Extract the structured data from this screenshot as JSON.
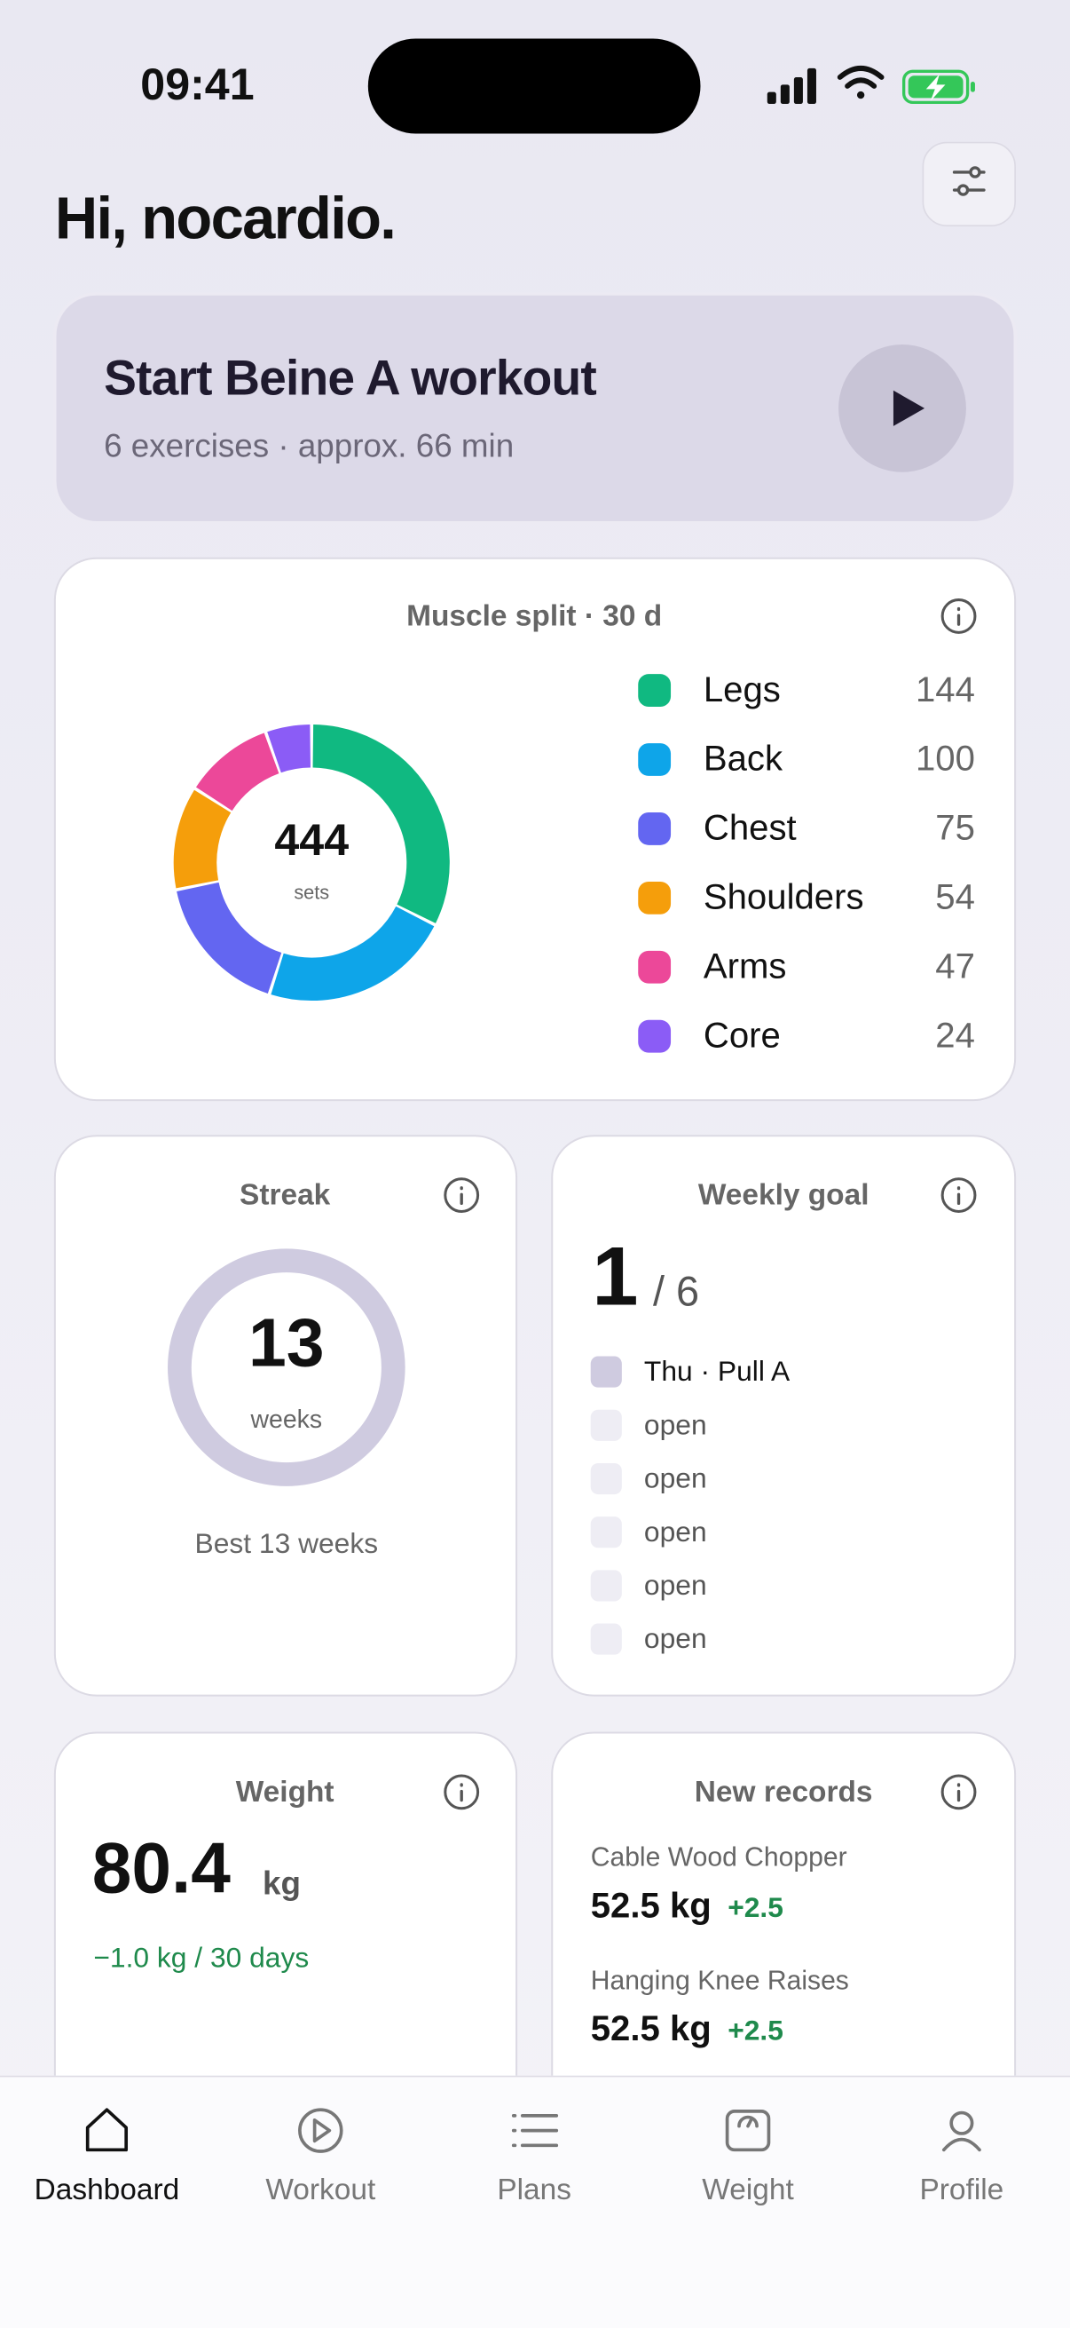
{
  "status_bar": {
    "time": "09:41"
  },
  "header": {
    "greeting": "Hi, nocardio."
  },
  "start_card": {
    "title": "Start Beine A workout",
    "subtitle": "6 exercises · approx. 66 min"
  },
  "muscle_split": {
    "title": "Muscle split · 30 d",
    "total": 444,
    "total_unit": "sets",
    "categories": [
      "Legs",
      "Back",
      "Chest",
      "Shoulders",
      "Arms",
      "Core"
    ],
    "values": [
      144,
      100,
      75,
      54,
      47,
      24
    ],
    "colors": [
      "#10b981",
      "#0ea5e9",
      "#6366f1",
      "#f59e0b",
      "#ec4899",
      "#8b5cf6"
    ]
  },
  "streak": {
    "title": "Streak",
    "value": 13,
    "unit": "weeks",
    "best": "Best 13 weeks"
  },
  "weekly_goal": {
    "title": "Weekly goal",
    "done": 1,
    "goal": "/ 6",
    "items": [
      "Thu · Pull A",
      "open",
      "open",
      "open",
      "open",
      "open"
    ]
  },
  "weight": {
    "title": "Weight",
    "value": 80.4,
    "unit": "kg",
    "change": "−1.0 kg / 30 days"
  },
  "records": {
    "title": "New records",
    "items": [
      {
        "name": "Cable Wood Chopper",
        "value": "52.5 kg",
        "delta": "+2.5"
      },
      {
        "name": "Hanging Knee Raises",
        "value": "52.5 kg",
        "delta": "+2.5"
      }
    ]
  },
  "tab_bar": {
    "tabs": [
      "Dashboard",
      "Workout",
      "Plans",
      "Weight",
      "Profile"
    ]
  }
}
